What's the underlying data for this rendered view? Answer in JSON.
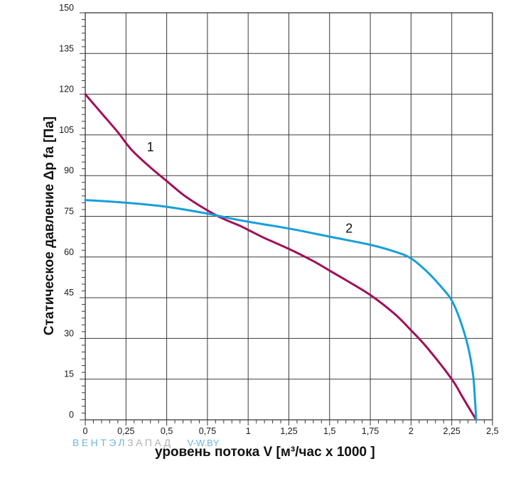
{
  "chart_data": {
    "type": "line",
    "xlabel": "уровень потока  V [м³/час x 1000 ]",
    "ylabel": "Статическое давление  Δp fa [Па]",
    "xlim": [
      0,
      2.5
    ],
    "ylim": [
      0,
      150
    ],
    "x_ticks": [
      {
        "value": 0,
        "label": "0"
      },
      {
        "value": 0.25,
        "label": "0,25"
      },
      {
        "value": 0.5,
        "label": "0,5"
      },
      {
        "value": 0.75,
        "label": "0,75"
      },
      {
        "value": 1,
        "label": "1"
      },
      {
        "value": 1.25,
        "label": "1,25"
      },
      {
        "value": 1.5,
        "label": "1,5"
      },
      {
        "value": 1.75,
        "label": "1,75"
      },
      {
        "value": 2,
        "label": "2"
      },
      {
        "value": 2.25,
        "label": "2,25"
      },
      {
        "value": 2.5,
        "label": "2,5"
      }
    ],
    "y_ticks": [
      {
        "value": 0,
        "label": "0"
      },
      {
        "value": 15,
        "label": "15"
      },
      {
        "value": 30,
        "label": "30"
      },
      {
        "value": 45,
        "label": "45"
      },
      {
        "value": 60,
        "label": "60"
      },
      {
        "value": 75,
        "label": "75"
      },
      {
        "value": 90,
        "label": "90"
      },
      {
        "value": 105,
        "label": "105"
      },
      {
        "value": 120,
        "label": "120"
      },
      {
        "value": 135,
        "label": "135"
      },
      {
        "value": 150,
        "label": "150"
      }
    ],
    "grid": true,
    "series": [
      {
        "name": "1",
        "color": "#a0105a",
        "x": [
          0,
          0.1,
          0.2,
          0.25,
          0.3,
          0.4,
          0.5,
          0.6,
          0.7,
          0.8,
          0.87,
          0.95,
          1.0,
          1.1,
          1.25,
          1.4,
          1.5,
          1.6,
          1.75,
          1.9,
          2.0,
          2.1,
          2.25,
          2.32,
          2.4
        ],
        "y": [
          120,
          113,
          106,
          102,
          98.5,
          93,
          88,
          83,
          79,
          75.5,
          73.5,
          71.5,
          70,
          67,
          63,
          58.5,
          55,
          51.5,
          46,
          39,
          33,
          26.5,
          15,
          8,
          0
        ]
      },
      {
        "name": "2",
        "color": "#169fdb",
        "x": [
          0,
          0.25,
          0.5,
          0.75,
          0.87,
          1.0,
          1.25,
          1.5,
          1.75,
          1.9,
          2.0,
          2.1,
          2.2,
          2.25,
          2.3,
          2.35,
          2.38,
          2.39,
          2.4
        ],
        "y": [
          81,
          80,
          78.5,
          76,
          74.5,
          73,
          70.5,
          67.5,
          64.5,
          62,
          59.5,
          54.5,
          48,
          44,
          37,
          27,
          17,
          10,
          0
        ]
      }
    ],
    "annotations": [
      {
        "text": "1",
        "x": 0.4,
        "y": 99
      },
      {
        "text": "2",
        "x": 1.62,
        "y": 69
      }
    ]
  },
  "watermark": {
    "part1": "ВЕНТЭЛ",
    "part2": "ЗАПАД",
    "part3": "V-W.BY",
    "color1": "#6fb3e0",
    "color2": "#b0b0b0",
    "color3": "#6fb3e0"
  }
}
